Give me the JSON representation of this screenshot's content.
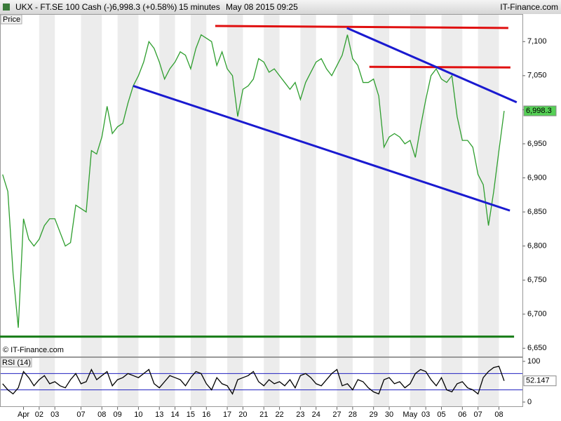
{
  "header": {
    "symbol": "UKX - FT.SE 100 Cash (-)",
    "quote": "6,998.3 (+0.58%)",
    "interval": "15 minutes",
    "datetime": "May 08 2015 09:25",
    "brand": "IT-Finance.com"
  },
  "chart_data": [
    {
      "type": "line",
      "label": "Price",
      "copyright": "© IT-Finance.com",
      "categories": [
        null,
        null,
        null,
        null,
        "Apr",
        null,
        null,
        "02",
        null,
        null,
        "03",
        null,
        null,
        null,
        null,
        "07",
        null,
        null,
        null,
        "08",
        null,
        null,
        "09",
        null,
        null,
        null,
        "10",
        null,
        null,
        null,
        "13",
        null,
        null,
        "14",
        null,
        null,
        "15",
        null,
        null,
        "16",
        null,
        null,
        null,
        "17",
        null,
        null,
        "20",
        null,
        null,
        null,
        "21",
        null,
        null,
        "22",
        null,
        null,
        null,
        "23",
        null,
        null,
        "24",
        null,
        null,
        null,
        "27",
        null,
        null,
        "28",
        null,
        null,
        null,
        "29",
        null,
        null,
        "30",
        null,
        null,
        null,
        "May",
        null,
        null,
        "03",
        null,
        null,
        "05",
        null,
        null,
        null,
        "06",
        null,
        null,
        "07",
        null,
        null,
        null,
        "08",
        null
      ],
      "values": [
        6905,
        6880,
        6760,
        6680,
        6840,
        6810,
        6800,
        6810,
        6830,
        6840,
        6840,
        6820,
        6800,
        6805,
        6860,
        6855,
        6850,
        6940,
        6935,
        6960,
        7005,
        6965,
        6975,
        6980,
        7010,
        7035,
        7050,
        7070,
        7100,
        7090,
        7070,
        7045,
        7060,
        7070,
        7085,
        7080,
        7060,
        7090,
        7110,
        7105,
        7100,
        7065,
        7085,
        7060,
        7050,
        6990,
        7030,
        7035,
        7045,
        7075,
        7070,
        7055,
        7060,
        7050,
        7040,
        7030,
        7040,
        7015,
        7040,
        7055,
        7070,
        7075,
        7060,
        7050,
        7065,
        7080,
        7110,
        7075,
        7065,
        7040,
        7040,
        7045,
        7020,
        6945,
        6960,
        6965,
        6960,
        6950,
        6955,
        6930,
        6975,
        7015,
        7050,
        7060,
        7045,
        7040,
        7050,
        6990,
        6955,
        6955,
        6945,
        6905,
        6890,
        6830,
        6880,
        6940,
        6998.3
      ],
      "color": "#2e9e2e",
      "ylim": [
        6640,
        7125
      ],
      "yticks": [
        {
          "value": 6650,
          "label": "6,650"
        },
        {
          "value": 6700,
          "label": "6,700"
        },
        {
          "value": 6750,
          "label": "6,750"
        },
        {
          "value": 6800,
          "label": "6,800"
        },
        {
          "value": 6850,
          "label": "6,850"
        },
        {
          "value": 6900,
          "label": "6,900"
        },
        {
          "value": 6950,
          "label": "6,950"
        },
        {
          "value": 7000,
          "label": "7,000"
        },
        {
          "value": 7050,
          "label": "7,050"
        },
        {
          "value": 7100,
          "label": "7,100"
        }
      ],
      "last_label": "6,998.3",
      "trendlines": [
        {
          "color": "#e01010",
          "x": [
            40.7,
            96.8
          ],
          "y": [
            7123,
            7120
          ]
        },
        {
          "color": "#e01010",
          "x": [
            70.2,
            97.2
          ],
          "y": [
            7063,
            7062
          ]
        },
        {
          "color": "#1a1ad0",
          "x": [
            65.9,
            98.4
          ],
          "y": [
            7120,
            7011
          ]
        },
        {
          "color": "#1a1ad0",
          "x": [
            25,
            97.1
          ],
          "y": [
            7035,
            6852
          ]
        },
        {
          "color": "#137a13",
          "x": [
            -0.5,
            97.9
          ],
          "y": [
            6667,
            6667
          ]
        }
      ]
    },
    {
      "type": "line",
      "label": "RSI (14)",
      "values": [
        45,
        30,
        20,
        35,
        75,
        60,
        40,
        55,
        65,
        45,
        50,
        40,
        35,
        55,
        70,
        45,
        50,
        80,
        55,
        65,
        75,
        40,
        55,
        60,
        70,
        65,
        60,
        70,
        80,
        45,
        35,
        50,
        65,
        60,
        55,
        40,
        60,
        75,
        70,
        45,
        30,
        60,
        45,
        40,
        20,
        55,
        60,
        65,
        75,
        50,
        40,
        55,
        45,
        50,
        40,
        55,
        35,
        65,
        70,
        60,
        45,
        40,
        55,
        70,
        80,
        40,
        45,
        30,
        55,
        50,
        35,
        25,
        20,
        55,
        60,
        45,
        50,
        35,
        45,
        70,
        80,
        75,
        55,
        40,
        60,
        30,
        25,
        45,
        50,
        35,
        30,
        20,
        60,
        75,
        85,
        88,
        52.147
      ],
      "color": "#000000",
      "ylim": [
        0,
        100
      ],
      "yticks": [
        0,
        100
      ],
      "levels": [
        30,
        70
      ],
      "last_label": "52.147"
    }
  ]
}
